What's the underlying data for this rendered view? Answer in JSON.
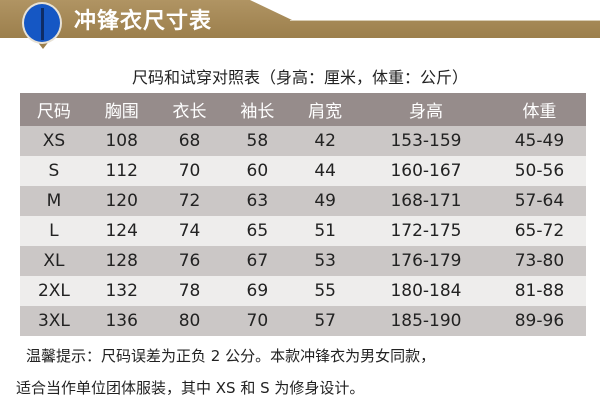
{
  "banner": {
    "title": "冲锋衣尺寸表",
    "icon": "jacket-icon"
  },
  "subtitle": "尺码和试穿对照表（身高：厘米，体重：公斤）",
  "table": {
    "headers": [
      "尺码",
      "胸围",
      "衣长",
      "袖长",
      "肩宽",
      "身高",
      "体重"
    ],
    "rows": [
      [
        "XS",
        "108",
        "68",
        "58",
        "42",
        "153-159",
        "45-49"
      ],
      [
        "S",
        "112",
        "70",
        "60",
        "44",
        "160-167",
        "50-56"
      ],
      [
        "M",
        "120",
        "72",
        "63",
        "49",
        "168-171",
        "57-64"
      ],
      [
        "L",
        "124",
        "74",
        "65",
        "51",
        "172-175",
        "65-72"
      ],
      [
        "XL",
        "128",
        "76",
        "67",
        "53",
        "176-179",
        "73-80"
      ],
      [
        "2XL",
        "132",
        "78",
        "69",
        "55",
        "180-184",
        "81-88"
      ],
      [
        "3XL",
        "136",
        "80",
        "70",
        "57",
        "185-190",
        "89-96"
      ]
    ]
  },
  "notes": [
    "温馨提示：尺码误差为正负 2 公分。本款冲锋衣为男女同款，",
    "适合当作单位团体服装，其中 XS 和 S 为修身设计。"
  ],
  "colors": {
    "banner": "#a88b58",
    "header": "#968c8b",
    "row_dark": "#cbc7c6",
    "row_light": "#eeedec"
  }
}
